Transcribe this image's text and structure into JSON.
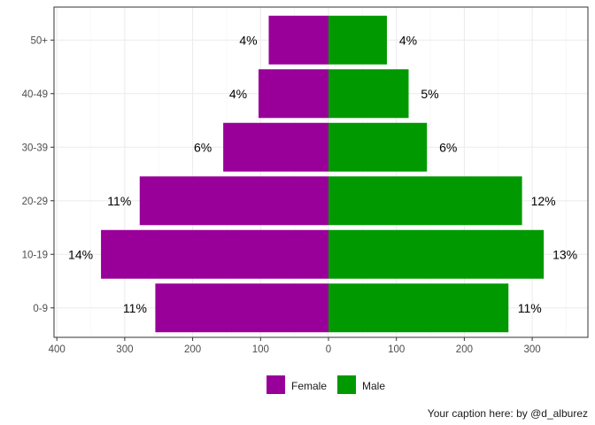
{
  "chart_data": {
    "type": "bar",
    "orientation": "horizontal",
    "layout": "population-pyramid",
    "categories": [
      "0-9",
      "10-19",
      "20-29",
      "30-39",
      "40-49",
      "50+"
    ],
    "series": [
      {
        "name": "Female",
        "color": "#990099",
        "values": [
          -255,
          -335,
          -278,
          -155,
          -103,
          -88
        ],
        "labels": [
          "11%",
          "14%",
          "11%",
          "6%",
          "4%",
          "4%"
        ]
      },
      {
        "name": "Male",
        "color": "#009900",
        "values": [
          265,
          317,
          285,
          145,
          118,
          86
        ],
        "labels": [
          "11%",
          "13%",
          "12%",
          "6%",
          "5%",
          "4%"
        ]
      }
    ],
    "x_ticks": [
      {
        "value": -400,
        "label": "400"
      },
      {
        "value": -300,
        "label": "300"
      },
      {
        "value": -200,
        "label": "200"
      },
      {
        "value": -100,
        "label": "100"
      },
      {
        "value": 0,
        "label": "0"
      },
      {
        "value": 100,
        "label": "100"
      },
      {
        "value": 200,
        "label": "200"
      },
      {
        "value": 300,
        "label": "300"
      }
    ],
    "xlim": [
      -400,
      380
    ],
    "xlabel": "",
    "ylabel": "",
    "grid": true,
    "legend_position": "bottom",
    "caption": "Your caption here: by @d_alburez"
  }
}
